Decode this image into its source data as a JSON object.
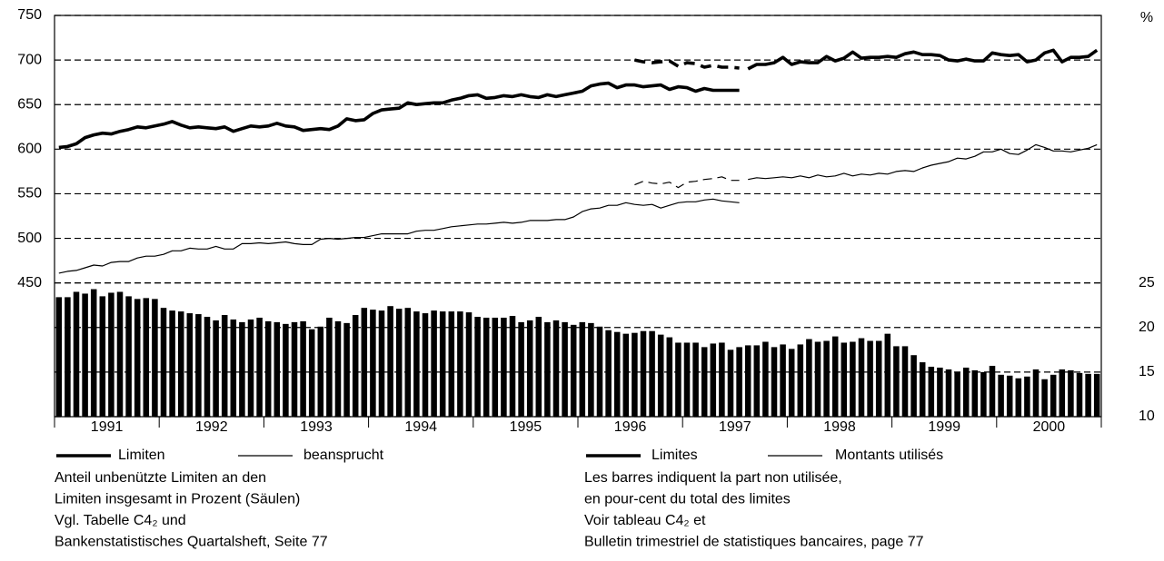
{
  "chart_data": {
    "type": "combo",
    "unit_label": "%",
    "categories": [
      null,
      null,
      null,
      null,
      null,
      "1991",
      null,
      null,
      null,
      null,
      null,
      null,
      null,
      null,
      null,
      null,
      null,
      "1992",
      null,
      null,
      null,
      null,
      null,
      null,
      null,
      null,
      null,
      null,
      null,
      "1993",
      null,
      null,
      null,
      null,
      null,
      null,
      null,
      null,
      null,
      null,
      null,
      "1994",
      null,
      null,
      null,
      null,
      null,
      null,
      null,
      null,
      null,
      null,
      null,
      "1995",
      null,
      null,
      null,
      null,
      null,
      null,
      null,
      null,
      null,
      null,
      null,
      "1996",
      null,
      null,
      null,
      null,
      null,
      null,
      null,
      null,
      null,
      null,
      null,
      "1997",
      null,
      null,
      null,
      null,
      null,
      null,
      null,
      null,
      null,
      null,
      null,
      "1998",
      null,
      null,
      null,
      null,
      null,
      null,
      null,
      null,
      null,
      null,
      null,
      "1999",
      null,
      null,
      null,
      null,
      null,
      null,
      null,
      null,
      null,
      null,
      null,
      "2000",
      null,
      null,
      null,
      null,
      null,
      null
    ],
    "ylim": [
      300,
      750
    ],
    "yticks": [
      450,
      500,
      550,
      600,
      650,
      700,
      750
    ],
    "y2lim": [
      10,
      55
    ],
    "y2ticks": [
      10,
      15,
      20,
      25
    ],
    "grid": true,
    "series": [
      {
        "type": "bar",
        "axis": "y2",
        "color": "#000000",
        "values": [
          23.4,
          23.4,
          24.0,
          23.8,
          24.3,
          23.5,
          23.9,
          24.0,
          23.5,
          23.2,
          23.3,
          23.2,
          22.2,
          21.9,
          21.8,
          21.6,
          21.5,
          21.2,
          20.8,
          21.4,
          20.9,
          20.6,
          20.9,
          21.1,
          20.7,
          20.6,
          20.4,
          20.6,
          20.7,
          19.8,
          20.1,
          21.1,
          20.7,
          20.5,
          21.4,
          22.2,
          22.0,
          21.9,
          22.4,
          22.1,
          22.2,
          21.8,
          21.6,
          21.9,
          21.8,
          21.8,
          21.8,
          21.7,
          21.2,
          21.1,
          21.1,
          21.1,
          21.3,
          20.6,
          20.8,
          21.2,
          20.6,
          20.8,
          20.6,
          20.3,
          20.6,
          20.5,
          20.1,
          19.7,
          19.5,
          19.3,
          19.4,
          19.6,
          19.6,
          19.2,
          18.9,
          18.3,
          18.3,
          18.3,
          17.8,
          18.2,
          18.3,
          17.5,
          17.8,
          18.0,
          18.0,
          18.4,
          17.8,
          18.1,
          17.6,
          18.1,
          18.7,
          18.4,
          18.5,
          19.0,
          18.3,
          18.4,
          18.8,
          18.5,
          18.5,
          19.3,
          17.9,
          17.9,
          16.9,
          16.1,
          15.6,
          15.5,
          15.3,
          15.0,
          15.5,
          15.2,
          15.0,
          15.7,
          14.7,
          14.6,
          14.3,
          14.5,
          15.3,
          14.2,
          14.7,
          15.3,
          15.2,
          14.9,
          14.8,
          14.8
        ]
      },
      {
        "type": "line",
        "name": "Limiten",
        "color": "#000000",
        "weight": "thick",
        "values": [
          602,
          603,
          606,
          613,
          616,
          618,
          617,
          620,
          622,
          625,
          624,
          626,
          628,
          631,
          627,
          624,
          625,
          624,
          623,
          625,
          620,
          623,
          626,
          625,
          626,
          629,
          626,
          625,
          621,
          622,
          623,
          622,
          626,
          634,
          632,
          633,
          640,
          644,
          645,
          646,
          652,
          650,
          651,
          652,
          652,
          655,
          657,
          660,
          661,
          657,
          658,
          660,
          659,
          661,
          659,
          658,
          661,
          659,
          661,
          663,
          665,
          671,
          673,
          674,
          669,
          672,
          672,
          670,
          671,
          672,
          667,
          670,
          669,
          665,
          668,
          666,
          666,
          666,
          666,
          null,
          null,
          null,
          null,
          null,
          null,
          null,
          null,
          null,
          null,
          null,
          null,
          null,
          null,
          null,
          null,
          null,
          null,
          null,
          null,
          null,
          null,
          null,
          null,
          null,
          null,
          null,
          null,
          null,
          null,
          null,
          null,
          null,
          null,
          null,
          null,
          null,
          null,
          null,
          null,
          null
        ]
      },
      {
        "type": "line",
        "color": "#000000",
        "weight": "thick",
        "dashed": true,
        "values": [
          null,
          null,
          null,
          null,
          null,
          null,
          null,
          null,
          null,
          null,
          null,
          null,
          null,
          null,
          null,
          null,
          null,
          null,
          null,
          null,
          null,
          null,
          null,
          null,
          null,
          null,
          null,
          null,
          null,
          null,
          null,
          null,
          null,
          null,
          null,
          null,
          null,
          null,
          null,
          null,
          null,
          null,
          null,
          null,
          null,
          null,
          null,
          null,
          null,
          null,
          null,
          null,
          null,
          null,
          null,
          null,
          null,
          null,
          null,
          null,
          null,
          null,
          null,
          null,
          null,
          null,
          700,
          698,
          697,
          698,
          699,
          693,
          697,
          696,
          692,
          694,
          692,
          692,
          691,
          null,
          null,
          null,
          null,
          null,
          null,
          null,
          null,
          null,
          null,
          null,
          null,
          null,
          null,
          null,
          null,
          null,
          null,
          null,
          null,
          null,
          null,
          null,
          null,
          null,
          null,
          null,
          null,
          null,
          null,
          null,
          null,
          null,
          null,
          null,
          null,
          null,
          null,
          null,
          null,
          null
        ]
      },
      {
        "type": "line",
        "color": "#000000",
        "weight": "thick",
        "values": [
          null,
          null,
          null,
          null,
          null,
          null,
          null,
          null,
          null,
          null,
          null,
          null,
          null,
          null,
          null,
          null,
          null,
          null,
          null,
          null,
          null,
          null,
          null,
          null,
          null,
          null,
          null,
          null,
          null,
          null,
          null,
          null,
          null,
          null,
          null,
          null,
          null,
          null,
          null,
          null,
          null,
          null,
          null,
          null,
          null,
          null,
          null,
          null,
          null,
          null,
          null,
          null,
          null,
          null,
          null,
          null,
          null,
          null,
          null,
          null,
          null,
          null,
          null,
          null,
          null,
          null,
          null,
          null,
          null,
          null,
          null,
          null,
          null,
          null,
          null,
          null,
          null,
          null,
          null,
          690,
          695,
          695,
          697,
          703,
          695,
          698,
          697,
          697,
          704,
          699,
          702,
          709,
          702,
          703,
          703,
          704,
          703,
          707,
          709,
          706,
          706,
          705,
          700,
          699,
          701,
          699,
          699,
          708,
          706,
          705,
          706,
          698,
          700,
          708,
          711,
          698,
          703,
          703,
          704,
          711
        ]
      },
      {
        "type": "line",
        "name": "beansprucht",
        "color": "#000000",
        "weight": "thin",
        "values": [
          461,
          463,
          464,
          467,
          470,
          469,
          473,
          474,
          474,
          478,
          480,
          480,
          482,
          486,
          486,
          489,
          488,
          488,
          491,
          488,
          488,
          494,
          494,
          495,
          494,
          495,
          496,
          494,
          493,
          493,
          499,
          500,
          499,
          500,
          501,
          501,
          503,
          505,
          505,
          505,
          505,
          508,
          509,
          509,
          511,
          513,
          514,
          515,
          516,
          516,
          517,
          518,
          517,
          518,
          520,
          520,
          520,
          521,
          521,
          524,
          530,
          533,
          534,
          537,
          537,
          540,
          538,
          537,
          538,
          534,
          537,
          540,
          541,
          541,
          543,
          544,
          542,
          541,
          540,
          null,
          null,
          null,
          null,
          null,
          null,
          null,
          null,
          null,
          null,
          null,
          null,
          null,
          null,
          null,
          null,
          null,
          null,
          null,
          null,
          null,
          null,
          null,
          null,
          null,
          null,
          null,
          null,
          null,
          null,
          null,
          null,
          null,
          null,
          null,
          null,
          null,
          null,
          null,
          null,
          null
        ]
      },
      {
        "type": "line",
        "color": "#000000",
        "weight": "thin",
        "dashed": true,
        "values": [
          null,
          null,
          null,
          null,
          null,
          null,
          null,
          null,
          null,
          null,
          null,
          null,
          null,
          null,
          null,
          null,
          null,
          null,
          null,
          null,
          null,
          null,
          null,
          null,
          null,
          null,
          null,
          null,
          null,
          null,
          null,
          null,
          null,
          null,
          null,
          null,
          null,
          null,
          null,
          null,
          null,
          null,
          null,
          null,
          null,
          null,
          null,
          null,
          null,
          null,
          null,
          null,
          null,
          null,
          null,
          null,
          null,
          null,
          null,
          null,
          null,
          null,
          null,
          null,
          null,
          null,
          560,
          564,
          562,
          561,
          563,
          557,
          563,
          564,
          566,
          567,
          569,
          565,
          565,
          null,
          null,
          null,
          null,
          null,
          null,
          null,
          null,
          null,
          null,
          null,
          null,
          null,
          null,
          null,
          null,
          null,
          null,
          null,
          null,
          null,
          null,
          null,
          null,
          null,
          null,
          null,
          null,
          null,
          null,
          null,
          null,
          null,
          null,
          null,
          null,
          null,
          null,
          null,
          null,
          null
        ]
      },
      {
        "type": "line",
        "color": "#000000",
        "weight": "thin",
        "values": [
          null,
          null,
          null,
          null,
          null,
          null,
          null,
          null,
          null,
          null,
          null,
          null,
          null,
          null,
          null,
          null,
          null,
          null,
          null,
          null,
          null,
          null,
          null,
          null,
          null,
          null,
          null,
          null,
          null,
          null,
          null,
          null,
          null,
          null,
          null,
          null,
          null,
          null,
          null,
          null,
          null,
          null,
          null,
          null,
          null,
          null,
          null,
          null,
          null,
          null,
          null,
          null,
          null,
          null,
          null,
          null,
          null,
          null,
          null,
          null,
          null,
          null,
          null,
          null,
          null,
          null,
          null,
          null,
          null,
          null,
          null,
          null,
          null,
          null,
          null,
          null,
          null,
          null,
          null,
          566,
          568,
          567,
          568,
          569,
          568,
          570,
          568,
          571,
          569,
          570,
          573,
          570,
          572,
          571,
          573,
          572,
          575,
          576,
          575,
          579,
          582,
          584,
          586,
          590,
          589,
          592,
          597,
          597,
          600,
          595,
          594,
          599,
          605,
          602,
          598,
          598,
          597,
          599,
          601,
          605
        ]
      }
    ],
    "legend_fr": [
      "Limites",
      "Montants utilisés"
    ],
    "notes_de": [
      "Anteil unbenützte Limiten an den",
      "Limiten insgesamt in Prozent (Säulen)",
      "Vgl. Tabelle C4₂ und",
      "Bankenstatistisches Quartalsheft, Seite 77"
    ],
    "notes_fr": [
      "Les barres indiquent la part non utilisée,",
      "en pour-cent du total des limites",
      "Voir tableau C4₂ et",
      "Bulletin trimestriel de statistiques bancaires, page 77"
    ]
  }
}
